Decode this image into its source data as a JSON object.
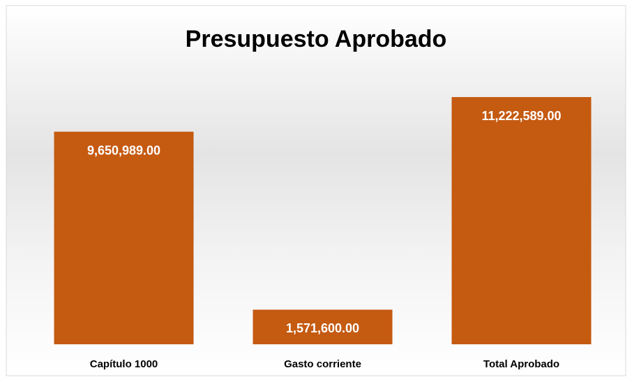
{
  "chart_data": {
    "type": "bar",
    "title": "Presupuesto Aprobado",
    "categories": [
      "Capítulo 1000",
      "Gasto corriente",
      "Total Aprobado"
    ],
    "values": [
      9650989,
      1571600,
      11222589
    ],
    "value_labels": [
      "9,650,989.00",
      "1,571,600.00",
      "11,222,589.00"
    ],
    "color": "#c55a11"
  }
}
